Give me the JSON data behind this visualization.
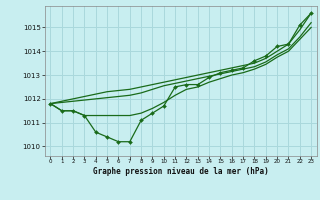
{
  "xlabel": "Graphe pression niveau de la mer (hPa)",
  "background_color": "#c8eef0",
  "grid_color": "#aad8dc",
  "line_color": "#1a6b1a",
  "hours": [
    0,
    1,
    2,
    3,
    4,
    5,
    6,
    7,
    8,
    9,
    10,
    11,
    12,
    13,
    14,
    15,
    16,
    17,
    18,
    19,
    20,
    21,
    22,
    23
  ],
  "main_y": [
    1011.8,
    1011.5,
    1011.5,
    1011.3,
    1010.6,
    1010.4,
    1010.2,
    1010.2,
    1011.1,
    1011.4,
    1011.7,
    1012.5,
    1012.6,
    1012.6,
    1012.9,
    1013.1,
    1013.2,
    1013.3,
    1013.6,
    1013.8,
    1014.2,
    1014.3,
    1015.1,
    1015.6
  ],
  "upper_y": [
    1011.8,
    1011.9,
    1012.0,
    1012.1,
    1012.2,
    1012.3,
    1012.35,
    1012.4,
    1012.5,
    1012.6,
    1012.7,
    1012.8,
    1012.9,
    1013.0,
    1013.1,
    1013.2,
    1013.3,
    1013.4,
    1013.5,
    1013.7,
    1014.0,
    1014.3,
    1014.9,
    1015.6
  ],
  "upper2_y": [
    1011.8,
    1011.85,
    1011.9,
    1011.95,
    1012.0,
    1012.05,
    1012.1,
    1012.15,
    1012.25,
    1012.4,
    1012.55,
    1012.65,
    1012.75,
    1012.85,
    1012.95,
    1013.05,
    1013.15,
    1013.25,
    1013.35,
    1013.55,
    1013.85,
    1014.1,
    1014.6,
    1015.2
  ],
  "lower_y": [
    1011.8,
    1011.5,
    1011.5,
    1011.3,
    1011.3,
    1011.3,
    1011.3,
    1011.3,
    1011.4,
    1011.6,
    1011.85,
    1012.15,
    1012.4,
    1012.5,
    1012.7,
    1012.85,
    1013.0,
    1013.1,
    1013.25,
    1013.45,
    1013.75,
    1014.0,
    1014.5,
    1015.0
  ],
  "ylim": [
    1009.6,
    1015.9
  ],
  "yticks": [
    1010,
    1011,
    1012,
    1013,
    1014,
    1015
  ],
  "xtick_labels": [
    "0",
    "1",
    "2",
    "3",
    "4",
    "5",
    "6",
    "7",
    "8",
    "9",
    "10",
    "11",
    "12",
    "13",
    "14",
    "15",
    "16",
    "17",
    "18",
    "19",
    "20",
    "21",
    "22",
    "23"
  ]
}
